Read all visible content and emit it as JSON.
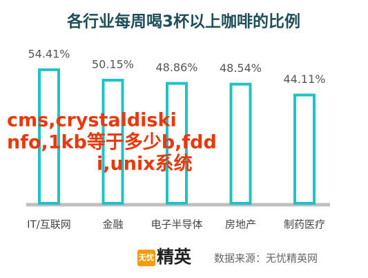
{
  "chart_data": {
    "type": "bar",
    "title": "各行业每周喝3杯以上咖啡的比例",
    "categories": [
      "IT/互联网",
      "金融",
      "电子半导体",
      "房地产",
      "制药医疗"
    ],
    "values": [
      54.41,
      50.15,
      48.86,
      48.54,
      44.11
    ],
    "value_labels": [
      "54.41%",
      "50.15%",
      "48.86%",
      "48.54%",
      "44.11%"
    ],
    "color": "#1ec3c8",
    "ylim": [
      0,
      60
    ],
    "annotation": [
      "cms,crystaldiski",
      "nfo,1kb等于多少b,fdd",
      "i,unix系统"
    ],
    "logo": {
      "badge": "无忧",
      "name": "精英"
    },
    "source": "数据来源：无忧精英网"
  }
}
